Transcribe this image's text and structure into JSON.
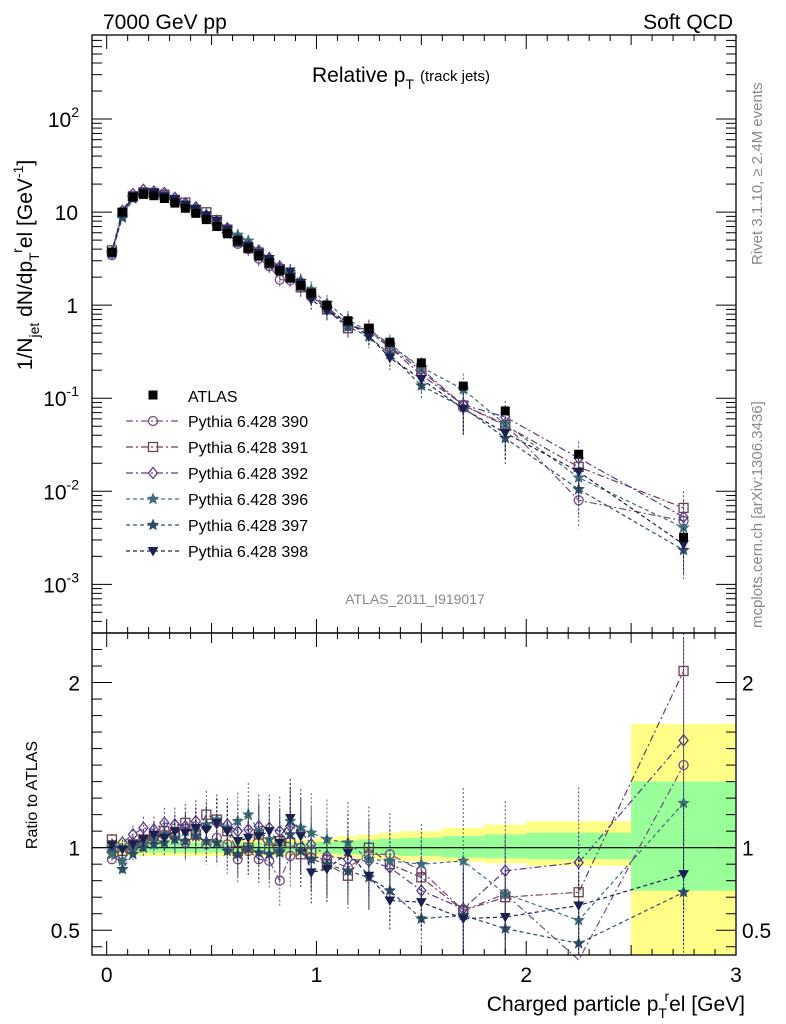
{
  "header": {
    "left": "7000 GeV pp",
    "right": "Soft QCD"
  },
  "side": {
    "rivet": "Rivet 3.1.10, ≥ 2.4M events",
    "mcplots": "mcplots.cern.ch [arXiv:1306.3436]"
  },
  "colors": {
    "data": "#000000",
    "yellow": "#ffff88",
    "green": "#99ff99"
  },
  "chart_data": {
    "type": "scatter",
    "title_main": "Relative p",
    "title_sub": "T",
    "title_note": "(track jets)",
    "ylabel": "1/N_jet dN/dp_T^rel [GeV^-1]",
    "ylabel_parts": {
      "a": "1/N",
      "b": "jet",
      "c": " dN/dp",
      "d": "T",
      "e": "r",
      "f": "el [GeV",
      "g": "-1",
      "h": "]"
    },
    "xlabel": {
      "a": "Charged particle p",
      "b": "T",
      "c": "r",
      "d": "el [GeV]"
    },
    "ratio_label": "Ratio to ATLAS",
    "watermark": "ATLAS_2011_I919017",
    "xlim": [
      -0.07,
      3.0
    ],
    "ylim_main": [
      0.0003,
      800
    ],
    "ylim_ratio": [
      0.35,
      2.3
    ],
    "x_ticks": [
      {
        "v": 0,
        "label": "0"
      },
      {
        "v": 1,
        "label": "1"
      },
      {
        "v": 2,
        "label": "2"
      },
      {
        "v": 3,
        "label": "3"
      }
    ],
    "y_ticks_main": [
      {
        "v": 0.001,
        "b": "10",
        "e": "-3"
      },
      {
        "v": 0.01,
        "b": "10",
        "e": "-2"
      },
      {
        "v": 0.1,
        "b": "10",
        "e": "-1"
      },
      {
        "v": 1,
        "b": "1",
        "e": ""
      },
      {
        "v": 10,
        "b": "10",
        "e": ""
      },
      {
        "v": 100,
        "b": "10",
        "e": "2"
      }
    ],
    "y_ticks_ratio": [
      {
        "v": 0.5,
        "label": "0.5"
      },
      {
        "v": 1,
        "label": "1"
      },
      {
        "v": 2,
        "label": "2"
      }
    ],
    "data_x": [
      0.025,
      0.075,
      0.125,
      0.175,
      0.225,
      0.275,
      0.325,
      0.375,
      0.425,
      0.475,
      0.525,
      0.575,
      0.625,
      0.675,
      0.725,
      0.775,
      0.825,
      0.875,
      0.925,
      0.975,
      1.05,
      1.15,
      1.25,
      1.35,
      1.5,
      1.7,
      1.9,
      2.25,
      2.75
    ],
    "data_y": [
      3.7,
      10.0,
      14.5,
      15.5,
      15.0,
      14.0,
      12.5,
      11.0,
      9.7,
      8.3,
      7.0,
      5.9,
      4.9,
      4.1,
      3.4,
      2.85,
      2.35,
      1.95,
      1.62,
      1.35,
      1.0,
      0.68,
      0.56,
      0.4,
      0.24,
      0.135,
      0.073,
      0.025,
      0.0032
    ],
    "band_bins": [
      {
        "lo": 0.0,
        "hi": 1.0,
        "y": [
          0.95,
          1.05
        ],
        "g": [
          0.97,
          1.03
        ]
      },
      {
        "lo": 1.0,
        "hi": 1.1,
        "y": [
          0.945,
          1.06
        ],
        "g": [
          0.965,
          1.035
        ]
      },
      {
        "lo": 1.1,
        "hi": 1.2,
        "y": [
          0.94,
          1.07
        ],
        "g": [
          0.96,
          1.04
        ]
      },
      {
        "lo": 1.2,
        "hi": 1.3,
        "y": [
          0.93,
          1.08
        ],
        "g": [
          0.955,
          1.05
        ]
      },
      {
        "lo": 1.3,
        "hi": 1.4,
        "y": [
          0.93,
          1.09
        ],
        "g": [
          0.955,
          1.055
        ]
      },
      {
        "lo": 1.4,
        "hi": 1.6,
        "y": [
          0.92,
          1.1
        ],
        "g": [
          0.95,
          1.06
        ]
      },
      {
        "lo": 1.6,
        "hi": 1.8,
        "y": [
          0.915,
          1.12
        ],
        "g": [
          0.94,
          1.07
        ]
      },
      {
        "lo": 1.8,
        "hi": 2.0,
        "y": [
          0.905,
          1.14
        ],
        "g": [
          0.935,
          1.08
        ]
      },
      {
        "lo": 2.0,
        "hi": 2.5,
        "y": [
          0.89,
          1.16
        ],
        "g": [
          0.93,
          1.09
        ]
      },
      {
        "lo": 2.5,
        "hi": 3.0,
        "y": [
          0.35,
          1.75
        ],
        "g": [
          0.74,
          1.4
        ]
      }
    ],
    "series": [
      {
        "name": "Pythia 6.428 390",
        "color": "#7a4a86",
        "marker": "circle",
        "dash": "7,3,2,3",
        "ratio": [
          0.93,
          0.96,
          1.0,
          1.04,
          1.06,
          1.08,
          1.07,
          1.03,
          1.1,
          1.02,
          1.06,
          1.02,
          0.93,
          0.98,
          0.93,
          0.92,
          0.8,
          0.95,
          1.0,
          0.94,
          0.93,
          0.88,
          0.96,
          0.96,
          0.86,
          0.62,
          0.72,
          0.32,
          1.5
        ]
      },
      {
        "name": "Pythia 6.428 391",
        "color": "#6e3e50",
        "marker": "square",
        "dash": "7,3,2,3",
        "ratio": [
          1.05,
          0.98,
          1.02,
          1.05,
          1.07,
          1.1,
          1.08,
          1.15,
          1.08,
          1.2,
          1.17,
          1.1,
          0.98,
          1.0,
          1.08,
          0.99,
          1.04,
          1.03,
          0.96,
          0.97,
          0.9,
          0.83,
          1.0,
          0.9,
          0.82,
          0.62,
          0.7,
          0.73,
          2.07
        ]
      },
      {
        "name": "Pythia 6.428 392",
        "color": "#5a3a8c",
        "marker": "diamond",
        "dash": "7,3,2,3",
        "ratio": [
          0.98,
          1.03,
          1.08,
          1.12,
          1.11,
          1.15,
          1.14,
          1.13,
          1.16,
          1.12,
          1.15,
          1.14,
          1.1,
          1.11,
          1.13,
          1.12,
          1.1,
          1.13,
          1.1,
          1.02,
          0.95,
          0.93,
          0.92,
          0.88,
          0.74,
          0.63,
          0.86,
          0.91,
          1.65
        ]
      },
      {
        "name": "Pythia 6.428 396",
        "color": "#3e6e78",
        "marker": "star",
        "dash": "4,3",
        "ratio": [
          0.96,
          0.92,
          1.0,
          1.03,
          1.05,
          1.08,
          1.06,
          1.1,
          1.12,
          1.14,
          1.17,
          1.12,
          1.16,
          1.2,
          1.1,
          1.05,
          0.98,
          1.16,
          1.12,
          1.09,
          1.05,
          1.03,
          0.93,
          0.92,
          0.9,
          0.92,
          0.72,
          0.56,
          1.27
        ]
      },
      {
        "name": "Pythia 6.428 397",
        "color": "#2e4e68",
        "marker": "star",
        "dash": "4,3",
        "ratio": [
          1.0,
          0.87,
          0.96,
          1.0,
          1.02,
          1.03,
          1.05,
          1.04,
          1.07,
          1.04,
          1.03,
          0.98,
          0.96,
          1.0,
          0.97,
          0.96,
          0.97,
          1.08,
          0.98,
          0.93,
          0.9,
          0.86,
          0.82,
          0.74,
          0.57,
          0.59,
          0.51,
          0.42,
          0.73
        ]
      },
      {
        "name": "Pythia 6.428 398",
        "color": "#1a2050",
        "marker": "tridown",
        "dash": "4,3",
        "ratio": [
          1.02,
          0.99,
          1.02,
          1.05,
          1.08,
          1.06,
          1.1,
          1.09,
          1.12,
          1.11,
          1.15,
          1.1,
          1.04,
          1.06,
          1.07,
          1.1,
          1.03,
          1.18,
          1.07,
          0.85,
          0.87,
          0.97,
          0.83,
          0.68,
          0.67,
          0.57,
          0.58,
          0.65,
          0.84
        ]
      }
    ],
    "data_label": "ATLAS"
  }
}
